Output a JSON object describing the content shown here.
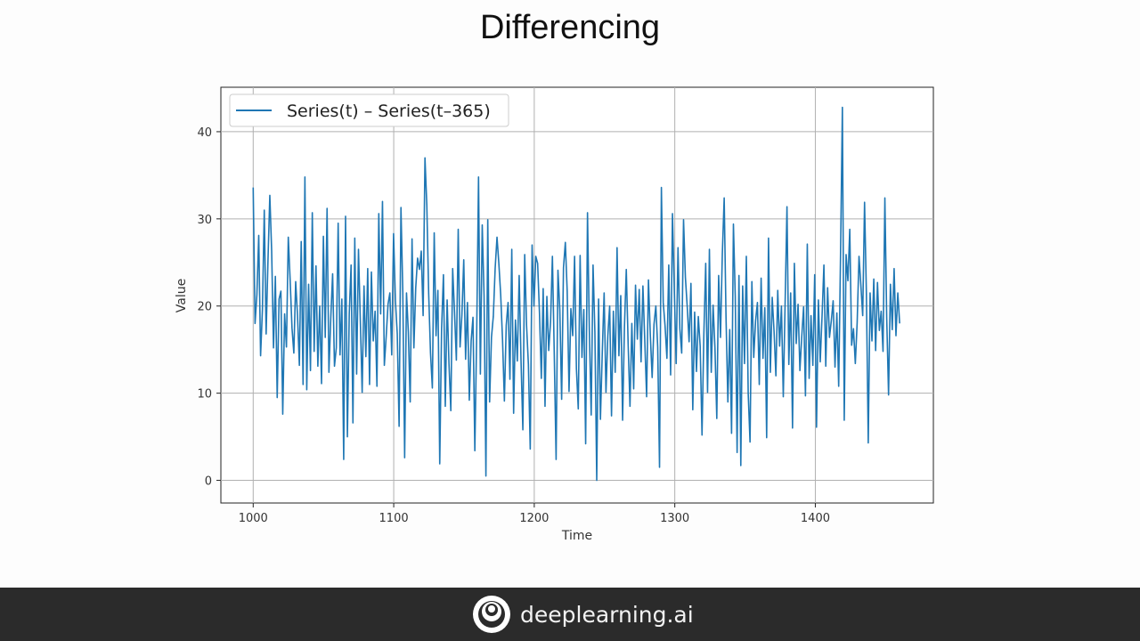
{
  "slide": {
    "title": "Differencing"
  },
  "footer": {
    "brand": "deeplearning.ai",
    "logo_icon": "deeplearning-ai-logo-icon"
  },
  "chart_data": {
    "type": "line",
    "title": "",
    "xlabel": "Time",
    "ylabel": "Value",
    "xlim": [
      977,
      1484
    ],
    "ylim": [
      -2.6,
      45.1
    ],
    "xticks": [
      1000,
      1100,
      1200,
      1300,
      1400
    ],
    "yticks": [
      0,
      10,
      20,
      30,
      40
    ],
    "grid": true,
    "legend_position": "top-left",
    "series": [
      {
        "name": "Series(t) – Series(t–365)",
        "color": "#1f77b4",
        "x_start": 1000,
        "x_step": 1,
        "values": [
          33.6,
          18.0,
          21.3,
          28.1,
          14.3,
          19.6,
          31.0,
          16.8,
          25.2,
          32.7,
          26.3,
          15.2,
          23.4,
          9.5,
          20.8,
          21.7,
          7.6,
          19.1,
          15.3,
          27.9,
          23.0,
          17.5,
          14.6,
          22.8,
          18.9,
          13.2,
          27.4,
          11.0,
          34.8,
          10.4,
          22.5,
          12.6,
          30.7,
          14.8,
          24.6,
          13.1,
          20.0,
          11.1,
          28.0,
          16.4,
          31.2,
          12.4,
          18.6,
          23.7,
          13.1,
          15.2,
          29.5,
          14.4,
          20.8,
          2.4,
          30.3,
          5.0,
          19.1,
          24.7,
          6.6,
          27.8,
          12.2,
          26.5,
          18.4,
          10.1,
          22.3,
          14.2,
          24.3,
          11.0,
          23.9,
          16.0,
          19.4,
          10.8,
          30.6,
          19.1,
          32.0,
          13.2,
          16.5,
          20.2,
          21.5,
          14.4,
          28.3,
          20.6,
          16.8,
          6.2,
          31.3,
          21.6,
          2.6,
          21.5,
          17.0,
          9.0,
          27.7,
          15.2,
          22.1,
          25.5,
          24.2,
          26.3,
          18.9,
          37.0,
          31.6,
          21.5,
          14.6,
          10.6,
          28.4,
          16.6,
          21.8,
          1.9,
          17.4,
          23.6,
          8.5,
          20.7,
          13.4,
          8.0,
          24.3,
          19.3,
          13.8,
          28.8,
          15.3,
          19.0,
          25.3,
          13.9,
          20.4,
          9.2,
          16.0,
          18.7,
          3.4,
          16.7,
          34.8,
          12.2,
          29.3,
          21.2,
          0.5,
          29.9,
          9.0,
          16.4,
          18.8,
          24.3,
          27.9,
          24.9,
          21.3,
          16.1,
          9.1,
          17.8,
          20.4,
          11.6,
          26.5,
          7.7,
          18.4,
          13.7,
          23.5,
          13.8,
          5.8,
          25.9,
          17.8,
          13.3,
          3.6,
          27.0,
          20.0,
          25.7,
          24.9,
          19.2,
          11.7,
          22.0,
          8.5,
          21.1,
          14.9,
          18.2,
          25.7,
          14.5,
          2.4,
          24.1,
          19.6,
          9.3,
          24.4,
          27.3,
          21.7,
          10.2,
          19.7,
          16.6,
          25.7,
          12.8,
          8.2,
          25.8,
          14.1,
          19.6,
          4.2,
          30.7,
          17.2,
          7.5,
          24.7,
          17.0,
          0.0,
          20.8,
          7.0,
          14.7,
          21.5,
          10.1,
          16.6,
          20.0,
          7.4,
          19.4,
          12.4,
          26.7,
          14.3,
          21.2,
          6.9,
          17.6,
          24.2,
          15.7,
          8.5,
          18.0,
          10.5,
          22.4,
          16.2,
          21.9,
          13.6,
          22.3,
          16.1,
          9.6,
          23.0,
          16.7,
          11.8,
          17.9,
          20.0,
          15.3,
          1.5,
          33.6,
          20.4,
          17.7,
          14.0,
          24.7,
          12.1,
          30.6,
          21.8,
          13.4,
          26.7,
          17.4,
          14.6,
          29.9,
          23.3,
          19.9,
          15.9,
          22.6,
          8.1,
          19.3,
          12.5,
          18.8,
          15.4,
          5.2,
          16.8,
          24.9,
          10.1,
          26.5,
          12.4,
          20.1,
          15.2,
          7.1,
          23.5,
          16.4,
          26.0,
          32.4,
          18.7,
          9.0,
          17.3,
          5.4,
          29.4,
          21.1,
          3.2,
          23.5,
          1.7,
          22.3,
          13.4,
          25.7,
          10.0,
          4.4,
          22.8,
          14.1,
          18.3,
          20.4,
          11.0,
          23.2,
          14.0,
          19.8,
          4.9,
          27.8,
          12.4,
          21.0,
          17.1,
          12.0,
          21.8,
          15.4,
          20.0,
          9.6,
          20.4,
          31.4,
          13.3,
          21.5,
          6.0,
          24.9,
          15.7,
          20.2,
          12.6,
          16.5,
          19.9,
          9.7,
          27.1,
          11.7,
          18.9,
          13.2,
          23.6,
          6.1,
          20.7,
          13.6,
          18.9,
          24.7,
          13.1,
          22.1,
          16.4,
          18.3,
          20.6,
          13.0,
          19.2,
          10.8,
          25.9,
          42.8,
          6.9,
          25.9,
          22.9,
          28.8,
          15.5,
          17.4,
          13.4,
          18.1,
          25.7,
          22.4,
          18.9,
          31.9,
          21.4,
          4.3,
          21.5,
          16.0,
          23.1,
          14.9,
          22.7,
          17.2,
          19.4,
          14.8,
          32.4,
          18.6,
          9.8,
          22.5,
          17.3,
          24.3,
          16.6,
          21.5,
          18.0
        ]
      }
    ]
  }
}
